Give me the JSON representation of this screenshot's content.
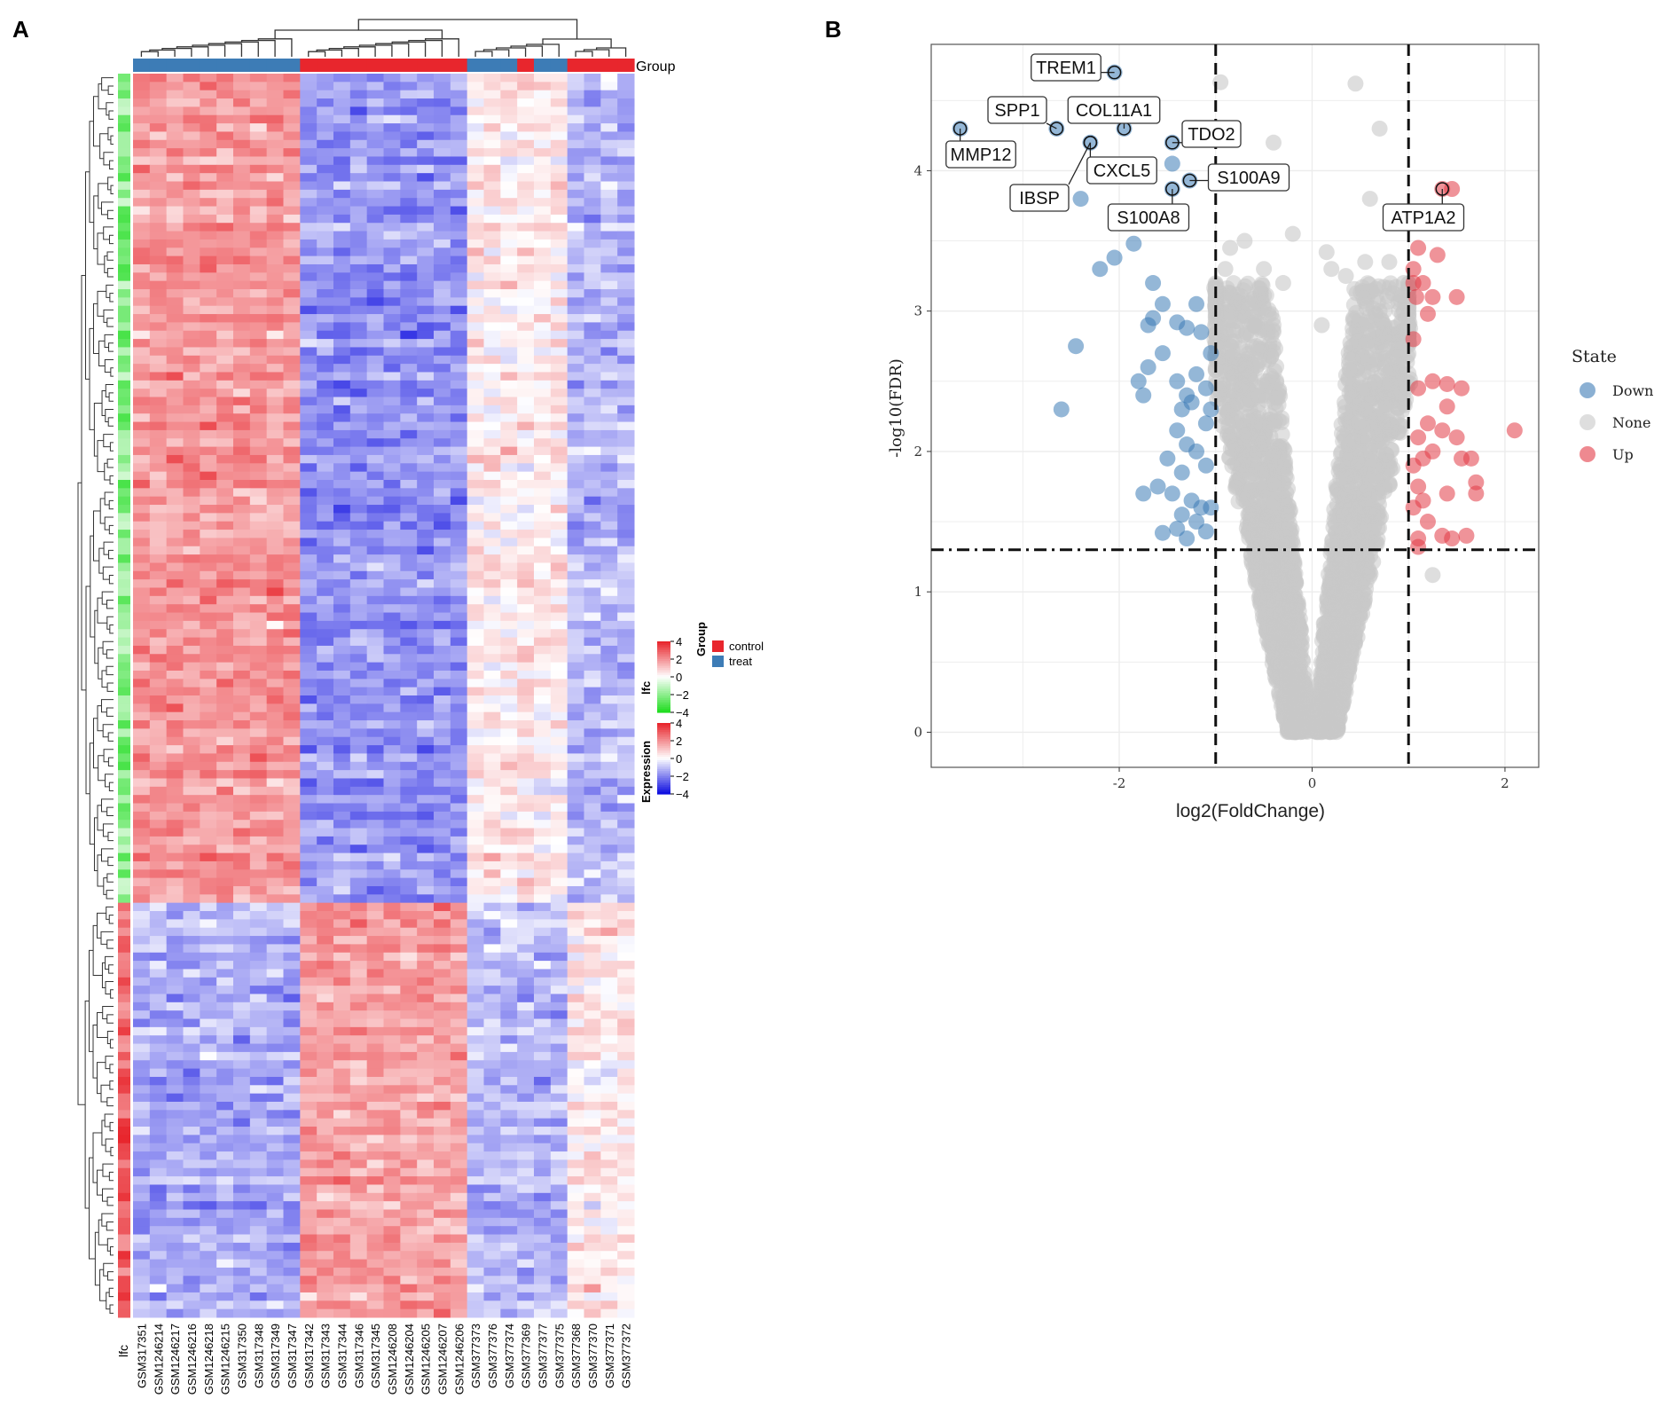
{
  "panels": {
    "a_label": "A",
    "b_label": "B"
  },
  "colors": {
    "control": "#e8262d",
    "treat": "#3d7cb6",
    "expr_high": "#e8262d",
    "expr_mid": "#ffffff",
    "expr_low": "#1010e0",
    "lfc_high": "#e8262d",
    "lfc_low": "#22dd22",
    "down": "#3d7cb6",
    "none": "#c8c8c8",
    "up": "#e23b46"
  },
  "chart_data": [
    {
      "type": "heatmap",
      "title": "",
      "annotation_label": "Group",
      "row_annotation_label": "lfc",
      "samples": [
        "GSM317351",
        "GSM1246214",
        "GSM1246217",
        "GSM1246216",
        "GSM1246218",
        "GSM1246215",
        "GSM317350",
        "GSM317348",
        "GSM317349",
        "GSM317347",
        "GSM317342",
        "GSM317343",
        "GSM317344",
        "GSM317346",
        "GSM317345",
        "GSM1246208",
        "GSM1246204",
        "GSM1246205",
        "GSM1246207",
        "GSM1246206",
        "GSM377373",
        "GSM377376",
        "GSM377374",
        "GSM377369",
        "GSM377377",
        "GSM377375",
        "GSM377368",
        "GSM377370",
        "GSM377371",
        "GSM377372"
      ],
      "groups": [
        "treat",
        "treat",
        "treat",
        "treat",
        "treat",
        "treat",
        "treat",
        "treat",
        "treat",
        "treat",
        "control",
        "control",
        "control",
        "control",
        "control",
        "control",
        "control",
        "control",
        "control",
        "control",
        "treat",
        "treat",
        "treat",
        "control",
        "treat",
        "treat",
        "control",
        "control",
        "control",
        "control"
      ],
      "n_genes_down": 100,
      "n_genes_up": 50,
      "legend": {
        "group": {
          "title": "Group",
          "items": [
            "control",
            "treat"
          ]
        },
        "lfc": {
          "title": "lfc",
          "ticks": [
            "4",
            "2",
            "0",
            "−2",
            "−4"
          ]
        },
        "expression": {
          "title": "Expression",
          "ticks": [
            "4",
            "2",
            "0",
            "−2",
            "−4"
          ]
        }
      },
      "expression_range": [
        -4,
        4
      ],
      "lfc_range": [
        -4,
        4
      ]
    },
    {
      "type": "scatter",
      "title": "",
      "xlabel": "log2(FoldChange)",
      "ylabel": "-log10(FDR)",
      "xlim": [
        -3.95,
        2.35
      ],
      "ylim": [
        -0.25,
        4.9
      ],
      "xticks": [
        -2,
        0,
        2
      ],
      "yticks": [
        0,
        1,
        2,
        3,
        4
      ],
      "fc_threshold": [
        -1,
        1
      ],
      "fdr_threshold": 1.3,
      "legend_title": "State",
      "legend_items": [
        "Down",
        "None",
        "Up"
      ],
      "down_points": [
        [
          -3.65,
          4.3
        ],
        [
          -2.65,
          4.3
        ],
        [
          -2.3,
          4.2
        ],
        [
          -2.05,
          4.7
        ],
        [
          -1.95,
          4.3
        ],
        [
          -1.45,
          4.2
        ],
        [
          -1.45,
          4.05
        ],
        [
          -1.45,
          3.87
        ],
        [
          -1.27,
          3.93
        ],
        [
          -2.4,
          3.8
        ],
        [
          -1.85,
          3.48
        ],
        [
          -2.05,
          3.38
        ],
        [
          -2.2,
          3.3
        ],
        [
          -1.65,
          3.2
        ],
        [
          -1.55,
          3.05
        ],
        [
          -1.65,
          2.95
        ],
        [
          -1.7,
          2.9
        ],
        [
          -1.2,
          3.05
        ],
        [
          -1.4,
          2.92
        ],
        [
          -1.3,
          2.88
        ],
        [
          -1.15,
          2.85
        ],
        [
          -2.45,
          2.75
        ],
        [
          -1.7,
          2.6
        ],
        [
          -1.55,
          2.7
        ],
        [
          -1.4,
          2.5
        ],
        [
          -1.2,
          2.55
        ],
        [
          -1.3,
          2.4
        ],
        [
          -1.1,
          2.45
        ],
        [
          -1.8,
          2.5
        ],
        [
          -1.75,
          2.4
        ],
        [
          -1.35,
          2.3
        ],
        [
          -1.25,
          2.35
        ],
        [
          -1.1,
          2.2
        ],
        [
          -1.4,
          2.15
        ],
        [
          -1.3,
          2.05
        ],
        [
          -1.2,
          2.0
        ],
        [
          -1.5,
          1.95
        ],
        [
          -1.35,
          1.85
        ],
        [
          -1.1,
          1.9
        ],
        [
          -1.6,
          1.75
        ],
        [
          -1.45,
          1.7
        ],
        [
          -1.25,
          1.65
        ],
        [
          -1.15,
          1.6
        ],
        [
          -1.35,
          1.55
        ],
        [
          -1.2,
          1.5
        ],
        [
          -1.05,
          1.6
        ],
        [
          -1.4,
          1.45
        ],
        [
          -1.55,
          1.42
        ],
        [
          -1.3,
          1.38
        ],
        [
          -1.1,
          1.43
        ],
        [
          -2.6,
          2.3
        ],
        [
          -1.75,
          1.7
        ],
        [
          -1.05,
          2.7
        ],
        [
          -1.05,
          2.3
        ]
      ],
      "up_points": [
        [
          1.35,
          3.87
        ],
        [
          1.45,
          3.87
        ],
        [
          1.1,
          3.45
        ],
        [
          1.3,
          3.4
        ],
        [
          1.05,
          3.3
        ],
        [
          1.15,
          3.2
        ],
        [
          1.08,
          3.1
        ],
        [
          1.25,
          3.1
        ],
        [
          1.5,
          3.1
        ],
        [
          1.2,
          2.98
        ],
        [
          1.1,
          2.45
        ],
        [
          1.4,
          2.48
        ],
        [
          1.55,
          2.45
        ],
        [
          1.25,
          2.5
        ],
        [
          1.4,
          2.32
        ],
        [
          1.35,
          2.15
        ],
        [
          1.2,
          2.2
        ],
        [
          1.5,
          2.1
        ],
        [
          2.1,
          2.15
        ],
        [
          1.1,
          2.1
        ],
        [
          1.05,
          1.9
        ],
        [
          1.15,
          1.95
        ],
        [
          1.25,
          2.0
        ],
        [
          1.55,
          1.95
        ],
        [
          1.65,
          1.95
        ],
        [
          1.1,
          1.75
        ],
        [
          1.4,
          1.7
        ],
        [
          1.7,
          1.78
        ],
        [
          1.7,
          1.7
        ],
        [
          1.15,
          1.65
        ],
        [
          1.05,
          1.6
        ],
        [
          1.2,
          1.5
        ],
        [
          1.1,
          1.38
        ],
        [
          1.35,
          1.4
        ],
        [
          1.45,
          1.38
        ],
        [
          1.6,
          1.4
        ],
        [
          1.1,
          1.32
        ],
        [
          1.05,
          2.8
        ],
        [
          1.05,
          3.2
        ]
      ],
      "none_points_top": [
        [
          0.45,
          4.62
        ],
        [
          -0.95,
          4.63
        ],
        [
          0.7,
          4.3
        ],
        [
          -0.4,
          4.2
        ],
        [
          0.6,
          3.8
        ],
        [
          -0.7,
          3.5
        ],
        [
          -0.2,
          3.55
        ],
        [
          0.15,
          3.42
        ],
        [
          0.55,
          3.35
        ],
        [
          -0.5,
          3.3
        ],
        [
          -0.3,
          3.2
        ],
        [
          0.35,
          3.25
        ],
        [
          -0.85,
          3.45
        ],
        [
          0.8,
          3.35
        ],
        [
          0.7,
          3.0
        ],
        [
          0.1,
          2.9
        ],
        [
          -0.6,
          2.9
        ],
        [
          0.95,
          3.2
        ],
        [
          0.2,
          3.3
        ],
        [
          -0.9,
          3.3
        ],
        [
          1.25,
          1.12
        ]
      ],
      "labels": [
        {
          "text": "TREM1",
          "x": -2.05,
          "y": 4.7
        },
        {
          "text": "SPP1",
          "x": -2.65,
          "y": 4.3
        },
        {
          "text": "COL11A1",
          "x": -1.95,
          "y": 4.3
        },
        {
          "text": "MMP12",
          "x": -3.65,
          "y": 4.3
        },
        {
          "text": "TDO2",
          "x": -1.45,
          "y": 4.2
        },
        {
          "text": "CXCL5",
          "x": -2.3,
          "y": 4.2
        },
        {
          "text": "S100A9",
          "x": -1.27,
          "y": 3.93
        },
        {
          "text": "IBSP",
          "x": -2.3,
          "y": 4.2
        },
        {
          "text": "S100A8",
          "x": -1.45,
          "y": 3.87
        },
        {
          "text": "ATP1A2",
          "x": 1.35,
          "y": 3.87
        }
      ]
    }
  ]
}
